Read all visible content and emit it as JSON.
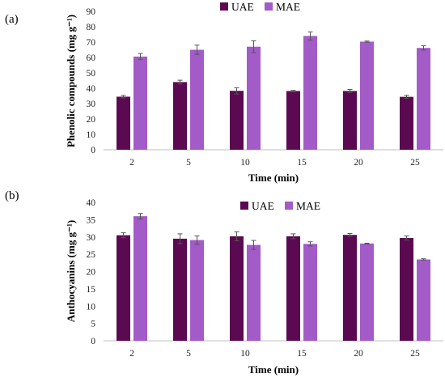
{
  "chart_data": [
    {
      "type": "bar",
      "panel_label": "(a)",
      "title": "",
      "xlabel": "Time (min)",
      "ylabel": "Phenolic compounds (mg g⁻¹)",
      "categories": [
        "2",
        "5",
        "10",
        "15",
        "20",
        "25"
      ],
      "ylim": [
        0,
        90
      ],
      "yticks": [
        0,
        10,
        20,
        30,
        40,
        50,
        60,
        70,
        80,
        90
      ],
      "grid": false,
      "legend_position": "top-center",
      "series": [
        {
          "name": "UAE",
          "color": "#5b0a52",
          "values": [
            34.5,
            44.0,
            38.3,
            38.2,
            38.2,
            34.4
          ],
          "errors": [
            0.8,
            1.2,
            2.0,
            0.4,
            1.0,
            1.0
          ]
        },
        {
          "name": "MAE",
          "color": "#a25bc7",
          "values": [
            60.6,
            65.0,
            67.0,
            74.0,
            70.3,
            66.2
          ],
          "errors": [
            2.0,
            3.0,
            3.8,
            2.6,
            0.4,
            1.4
          ]
        }
      ]
    },
    {
      "type": "bar",
      "panel_label": "(b)",
      "title": "",
      "xlabel": "Time (min)",
      "ylabel": "Anthocyanins (mg g⁻¹)",
      "categories": [
        "2",
        "5",
        "10",
        "15",
        "20",
        "25"
      ],
      "ylim": [
        0,
        40
      ],
      "yticks": [
        0,
        5,
        10,
        15,
        20,
        25,
        30,
        35,
        40
      ],
      "grid": false,
      "legend_position": "top-center",
      "series": [
        {
          "name": "UAE",
          "color": "#5b0a52",
          "values": [
            30.5,
            29.5,
            30.2,
            30.2,
            30.6,
            29.7
          ],
          "errors": [
            0.7,
            1.4,
            1.3,
            0.7,
            0.4,
            0.6
          ]
        },
        {
          "name": "MAE",
          "color": "#a25bc7",
          "values": [
            36.0,
            29.1,
            27.7,
            28.0,
            28.1,
            23.5
          ],
          "errors": [
            0.8,
            1.2,
            1.3,
            0.6,
            0.1,
            0.2
          ]
        }
      ]
    }
  ]
}
